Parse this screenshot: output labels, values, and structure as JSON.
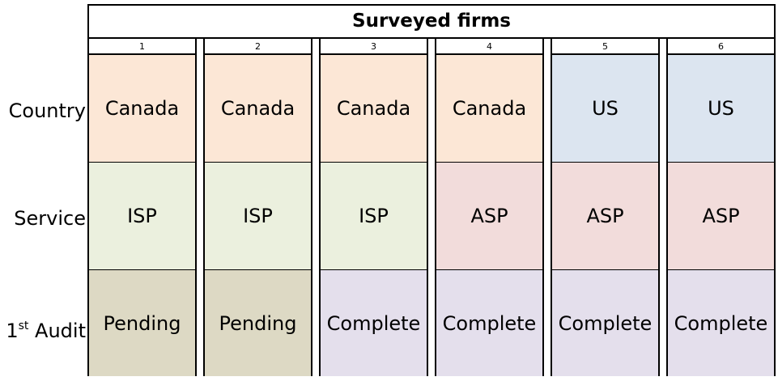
{
  "table": {
    "title": "Surveyed firms",
    "row_labels": {
      "country": "Country",
      "service": "Service",
      "audit_base": "1",
      "audit_sup": "st",
      "audit_rest": " Audit"
    },
    "columns": [
      {
        "number": "1",
        "country": "Canada",
        "service": "ISP",
        "audit": "Pending"
      },
      {
        "number": "2",
        "country": "Canada",
        "service": "ISP",
        "audit": "Pending"
      },
      {
        "number": "3",
        "country": "Canada",
        "service": "ISP",
        "audit": "Complete"
      },
      {
        "number": "4",
        "country": "Canada",
        "service": "ASP",
        "audit": "Complete"
      },
      {
        "number": "5",
        "country": "US",
        "service": "ASP",
        "audit": "Complete"
      },
      {
        "number": "6",
        "country": "US",
        "service": "ASP",
        "audit": "Complete"
      }
    ]
  },
  "colors": {
    "canada": "#FCE7D6",
    "us": "#DCE5F0",
    "isp": "#EBF0DE",
    "asp": "#F2DCDB",
    "pending": "#DDD9C4",
    "complete": "#E4DFEC"
  }
}
